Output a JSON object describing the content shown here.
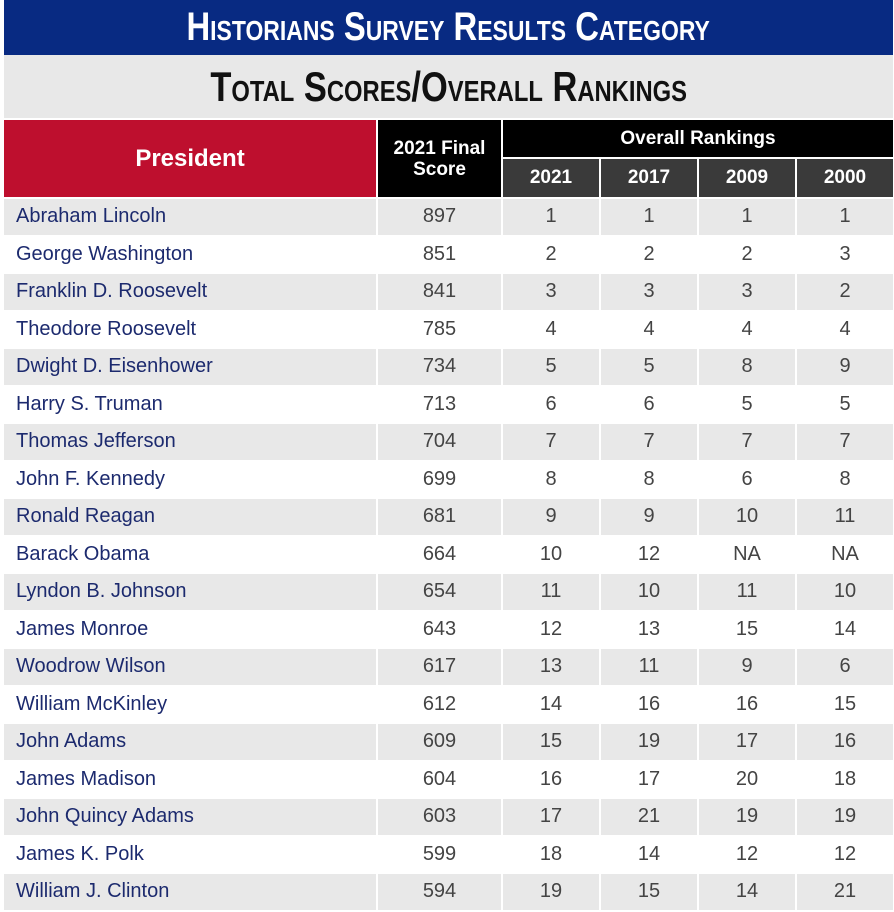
{
  "title": "Historians Survey Results Category",
  "subtitle": "Total Scores/Overall Rankings",
  "colors": {
    "title_bg": "#082a82",
    "president_header": "#be0f2e",
    "header_black": "#000000",
    "year_header": "#3a3a3a",
    "row_shade": "#e8e8e8",
    "name_text": "#1c2a6e"
  },
  "headers": {
    "president": "President",
    "score": "2021 Final\nScore",
    "overall": "Overall Rankings",
    "years": [
      "2021",
      "2017",
      "2009",
      "2000"
    ]
  },
  "rows": [
    {
      "name": "Abraham Lincoln",
      "score": "897",
      "ranks": [
        "1",
        "1",
        "1",
        "1"
      ]
    },
    {
      "name": "George Washington",
      "score": "851",
      "ranks": [
        "2",
        "2",
        "2",
        "3"
      ]
    },
    {
      "name": "Franklin D. Roosevelt",
      "score": "841",
      "ranks": [
        "3",
        "3",
        "3",
        "2"
      ]
    },
    {
      "name": "Theodore Roosevelt",
      "score": "785",
      "ranks": [
        "4",
        "4",
        "4",
        "4"
      ]
    },
    {
      "name": "Dwight D. Eisenhower",
      "score": "734",
      "ranks": [
        "5",
        "5",
        "8",
        "9"
      ]
    },
    {
      "name": "Harry S. Truman",
      "score": "713",
      "ranks": [
        "6",
        "6",
        "5",
        "5"
      ]
    },
    {
      "name": "Thomas Jefferson",
      "score": "704",
      "ranks": [
        "7",
        "7",
        "7",
        "7"
      ]
    },
    {
      "name": "John F. Kennedy",
      "score": "699",
      "ranks": [
        "8",
        "8",
        "6",
        "8"
      ]
    },
    {
      "name": "Ronald Reagan",
      "score": "681",
      "ranks": [
        "9",
        "9",
        "10",
        "11"
      ]
    },
    {
      "name": "Barack Obama",
      "score": "664",
      "ranks": [
        "10",
        "12",
        "NA",
        "NA"
      ]
    },
    {
      "name": "Lyndon B. Johnson",
      "score": "654",
      "ranks": [
        "11",
        "10",
        "11",
        "10"
      ]
    },
    {
      "name": "James Monroe",
      "score": "643",
      "ranks": [
        "12",
        "13",
        "15",
        "14"
      ]
    },
    {
      "name": "Woodrow Wilson",
      "score": "617",
      "ranks": [
        "13",
        "11",
        "9",
        "6"
      ]
    },
    {
      "name": "William McKinley",
      "score": "612",
      "ranks": [
        "14",
        "16",
        "16",
        "15"
      ]
    },
    {
      "name": "John Adams",
      "score": "609",
      "ranks": [
        "15",
        "19",
        "17",
        "16"
      ]
    },
    {
      "name": "James Madison",
      "score": "604",
      "ranks": [
        "16",
        "17",
        "20",
        "18"
      ]
    },
    {
      "name": "John Quincy Adams",
      "score": "603",
      "ranks": [
        "17",
        "21",
        "19",
        "19"
      ]
    },
    {
      "name": "James K. Polk",
      "score": "599",
      "ranks": [
        "18",
        "14",
        "12",
        "12"
      ]
    },
    {
      "name": "William J. Clinton",
      "score": "594",
      "ranks": [
        "19",
        "15",
        "14",
        "21"
      ]
    }
  ]
}
